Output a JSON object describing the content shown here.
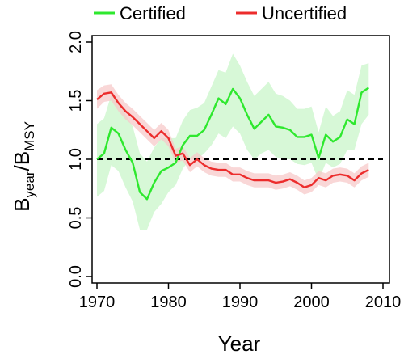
{
  "chart_data": {
    "type": "line",
    "xlabel": "Year",
    "ylabel": "B_year/B_MSY",
    "ylabel_parts": {
      "main1": "B",
      "sub1": "year",
      "slash": "/",
      "main2": "B",
      "sub2": "MSY"
    },
    "xlim": [
      1970,
      2010
    ],
    "ylim": [
      0.0,
      2.0
    ],
    "x_ticks": [
      1970,
      1980,
      1990,
      2000,
      2010
    ],
    "x_tick_labels": [
      "1970",
      "1980",
      "1990",
      "2000",
      "2010"
    ],
    "y_ticks": [
      0.0,
      0.5,
      1.0,
      1.5,
      2.0
    ],
    "y_tick_labels": [
      "0.0",
      "0.5",
      "1.0",
      "1.5",
      "2.0"
    ],
    "reference_line": {
      "y": 1.0,
      "style": "dashed",
      "color": "#000000"
    },
    "grid": false,
    "legend_position": "top",
    "series": [
      {
        "name": "Certified",
        "color": "#2ee82e",
        "band_color": "#c9f5c9",
        "x": [
          1970,
          1971,
          1972,
          1973,
          1974,
          1975,
          1976,
          1977,
          1978,
          1979,
          1980,
          1981,
          1982,
          1983,
          1984,
          1985,
          1986,
          1987,
          1988,
          1989,
          1990,
          1991,
          1992,
          1993,
          1994,
          1995,
          1996,
          1997,
          1998,
          1999,
          2000,
          2001,
          2002,
          2003,
          2004,
          2005,
          2006,
          2007,
          2008
        ],
        "values": [
          1.0,
          1.05,
          1.27,
          1.22,
          1.08,
          0.97,
          0.72,
          0.66,
          0.8,
          0.9,
          0.93,
          0.97,
          1.12,
          1.2,
          1.2,
          1.25,
          1.38,
          1.52,
          1.47,
          1.6,
          1.52,
          1.38,
          1.26,
          1.32,
          1.38,
          1.28,
          1.27,
          1.25,
          1.19,
          1.19,
          1.21,
          1.01,
          1.21,
          1.15,
          1.19,
          1.34,
          1.3,
          1.57,
          1.61
        ],
        "lower": [
          0.68,
          0.73,
          0.95,
          0.9,
          0.76,
          0.64,
          0.4,
          0.4,
          0.55,
          0.62,
          0.72,
          0.78,
          0.92,
          1.0,
          1.0,
          1.05,
          1.12,
          1.22,
          1.18,
          1.28,
          1.22,
          1.08,
          1.0,
          1.05,
          1.08,
          1.02,
          1.0,
          1.0,
          0.96,
          0.95,
          0.97,
          0.82,
          0.97,
          0.93,
          0.96,
          1.08,
          1.08,
          1.3,
          1.38
        ],
        "upper": [
          1.3,
          1.35,
          1.55,
          1.5,
          1.38,
          1.28,
          1.05,
          0.98,
          1.1,
          1.18,
          1.18,
          1.18,
          1.33,
          1.42,
          1.44,
          1.48,
          1.62,
          1.76,
          1.74,
          1.9,
          1.8,
          1.66,
          1.54,
          1.6,
          1.66,
          1.56,
          1.54,
          1.5,
          1.43,
          1.43,
          1.45,
          1.23,
          1.45,
          1.37,
          1.41,
          1.59,
          1.55,
          1.8,
          1.82
        ]
      },
      {
        "name": "Uncertified",
        "color": "#ec2c2c",
        "band_color": "#f7caca",
        "x": [
          1970,
          1971,
          1972,
          1973,
          1974,
          1975,
          1976,
          1977,
          1978,
          1979,
          1980,
          1981,
          1982,
          1983,
          1984,
          1985,
          1986,
          1987,
          1988,
          1989,
          1990,
          1991,
          1992,
          1993,
          1994,
          1995,
          1996,
          1997,
          1998,
          1999,
          2000,
          2001,
          2002,
          2003,
          2004,
          2005,
          2006,
          2007,
          2008
        ],
        "values": [
          1.51,
          1.56,
          1.57,
          1.48,
          1.41,
          1.36,
          1.3,
          1.24,
          1.18,
          1.24,
          1.18,
          1.03,
          1.05,
          0.95,
          1.0,
          0.95,
          0.92,
          0.91,
          0.91,
          0.87,
          0.87,
          0.84,
          0.82,
          0.82,
          0.82,
          0.8,
          0.81,
          0.83,
          0.8,
          0.76,
          0.78,
          0.84,
          0.82,
          0.86,
          0.87,
          0.86,
          0.82,
          0.88,
          0.91
        ],
        "lower": [
          1.43,
          1.49,
          1.5,
          1.41,
          1.34,
          1.29,
          1.23,
          1.17,
          1.11,
          1.17,
          1.11,
          0.97,
          0.99,
          0.89,
          0.94,
          0.89,
          0.86,
          0.85,
          0.85,
          0.81,
          0.81,
          0.78,
          0.76,
          0.76,
          0.76,
          0.74,
          0.75,
          0.77,
          0.74,
          0.7,
          0.72,
          0.78,
          0.76,
          0.8,
          0.81,
          0.8,
          0.76,
          0.82,
          0.85
        ],
        "upper": [
          1.59,
          1.63,
          1.64,
          1.55,
          1.48,
          1.43,
          1.37,
          1.31,
          1.25,
          1.31,
          1.25,
          1.09,
          1.11,
          1.01,
          1.06,
          1.01,
          0.98,
          0.97,
          0.97,
          0.93,
          0.93,
          0.9,
          0.88,
          0.88,
          0.88,
          0.86,
          0.87,
          0.89,
          0.86,
          0.82,
          0.84,
          0.9,
          0.88,
          0.92,
          0.93,
          0.92,
          0.88,
          0.94,
          0.97
        ]
      }
    ]
  }
}
